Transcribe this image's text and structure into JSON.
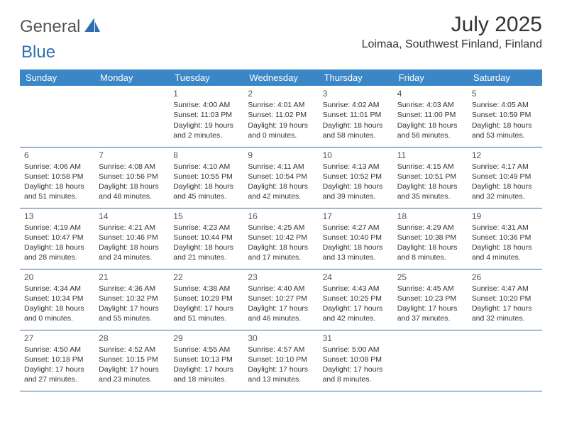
{
  "brand": {
    "part1": "General",
    "part2": "Blue"
  },
  "title": "July 2025",
  "location": "Loimaa, Southwest Finland, Finland",
  "colors": {
    "header_bg": "#3b86c6",
    "header_fg": "#ffffff",
    "rule": "#3b6a9a",
    "text": "#333333",
    "brand_blue": "#2f6fb0"
  },
  "weekdays": [
    "Sunday",
    "Monday",
    "Tuesday",
    "Wednesday",
    "Thursday",
    "Friday",
    "Saturday"
  ],
  "weeks": [
    [
      null,
      null,
      {
        "n": "1",
        "sr": "4:00 AM",
        "ss": "11:03 PM",
        "dl": "19 hours and 2 minutes."
      },
      {
        "n": "2",
        "sr": "4:01 AM",
        "ss": "11:02 PM",
        "dl": "19 hours and 0 minutes."
      },
      {
        "n": "3",
        "sr": "4:02 AM",
        "ss": "11:01 PM",
        "dl": "18 hours and 58 minutes."
      },
      {
        "n": "4",
        "sr": "4:03 AM",
        "ss": "11:00 PM",
        "dl": "18 hours and 56 minutes."
      },
      {
        "n": "5",
        "sr": "4:05 AM",
        "ss": "10:59 PM",
        "dl": "18 hours and 53 minutes."
      }
    ],
    [
      {
        "n": "6",
        "sr": "4:06 AM",
        "ss": "10:58 PM",
        "dl": "18 hours and 51 minutes."
      },
      {
        "n": "7",
        "sr": "4:08 AM",
        "ss": "10:56 PM",
        "dl": "18 hours and 48 minutes."
      },
      {
        "n": "8",
        "sr": "4:10 AM",
        "ss": "10:55 PM",
        "dl": "18 hours and 45 minutes."
      },
      {
        "n": "9",
        "sr": "4:11 AM",
        "ss": "10:54 PM",
        "dl": "18 hours and 42 minutes."
      },
      {
        "n": "10",
        "sr": "4:13 AM",
        "ss": "10:52 PM",
        "dl": "18 hours and 39 minutes."
      },
      {
        "n": "11",
        "sr": "4:15 AM",
        "ss": "10:51 PM",
        "dl": "18 hours and 35 minutes."
      },
      {
        "n": "12",
        "sr": "4:17 AM",
        "ss": "10:49 PM",
        "dl": "18 hours and 32 minutes."
      }
    ],
    [
      {
        "n": "13",
        "sr": "4:19 AM",
        "ss": "10:47 PM",
        "dl": "18 hours and 28 minutes."
      },
      {
        "n": "14",
        "sr": "4:21 AM",
        "ss": "10:46 PM",
        "dl": "18 hours and 24 minutes."
      },
      {
        "n": "15",
        "sr": "4:23 AM",
        "ss": "10:44 PM",
        "dl": "18 hours and 21 minutes."
      },
      {
        "n": "16",
        "sr": "4:25 AM",
        "ss": "10:42 PM",
        "dl": "18 hours and 17 minutes."
      },
      {
        "n": "17",
        "sr": "4:27 AM",
        "ss": "10:40 PM",
        "dl": "18 hours and 13 minutes."
      },
      {
        "n": "18",
        "sr": "4:29 AM",
        "ss": "10:38 PM",
        "dl": "18 hours and 8 minutes."
      },
      {
        "n": "19",
        "sr": "4:31 AM",
        "ss": "10:36 PM",
        "dl": "18 hours and 4 minutes."
      }
    ],
    [
      {
        "n": "20",
        "sr": "4:34 AM",
        "ss": "10:34 PM",
        "dl": "18 hours and 0 minutes."
      },
      {
        "n": "21",
        "sr": "4:36 AM",
        "ss": "10:32 PM",
        "dl": "17 hours and 55 minutes."
      },
      {
        "n": "22",
        "sr": "4:38 AM",
        "ss": "10:29 PM",
        "dl": "17 hours and 51 minutes."
      },
      {
        "n": "23",
        "sr": "4:40 AM",
        "ss": "10:27 PM",
        "dl": "17 hours and 46 minutes."
      },
      {
        "n": "24",
        "sr": "4:43 AM",
        "ss": "10:25 PM",
        "dl": "17 hours and 42 minutes."
      },
      {
        "n": "25",
        "sr": "4:45 AM",
        "ss": "10:23 PM",
        "dl": "17 hours and 37 minutes."
      },
      {
        "n": "26",
        "sr": "4:47 AM",
        "ss": "10:20 PM",
        "dl": "17 hours and 32 minutes."
      }
    ],
    [
      {
        "n": "27",
        "sr": "4:50 AM",
        "ss": "10:18 PM",
        "dl": "17 hours and 27 minutes."
      },
      {
        "n": "28",
        "sr": "4:52 AM",
        "ss": "10:15 PM",
        "dl": "17 hours and 23 minutes."
      },
      {
        "n": "29",
        "sr": "4:55 AM",
        "ss": "10:13 PM",
        "dl": "17 hours and 18 minutes."
      },
      {
        "n": "30",
        "sr": "4:57 AM",
        "ss": "10:10 PM",
        "dl": "17 hours and 13 minutes."
      },
      {
        "n": "31",
        "sr": "5:00 AM",
        "ss": "10:08 PM",
        "dl": "17 hours and 8 minutes."
      },
      null,
      null
    ]
  ],
  "labels": {
    "sunrise": "Sunrise:",
    "sunset": "Sunset:",
    "daylight": "Daylight:"
  }
}
